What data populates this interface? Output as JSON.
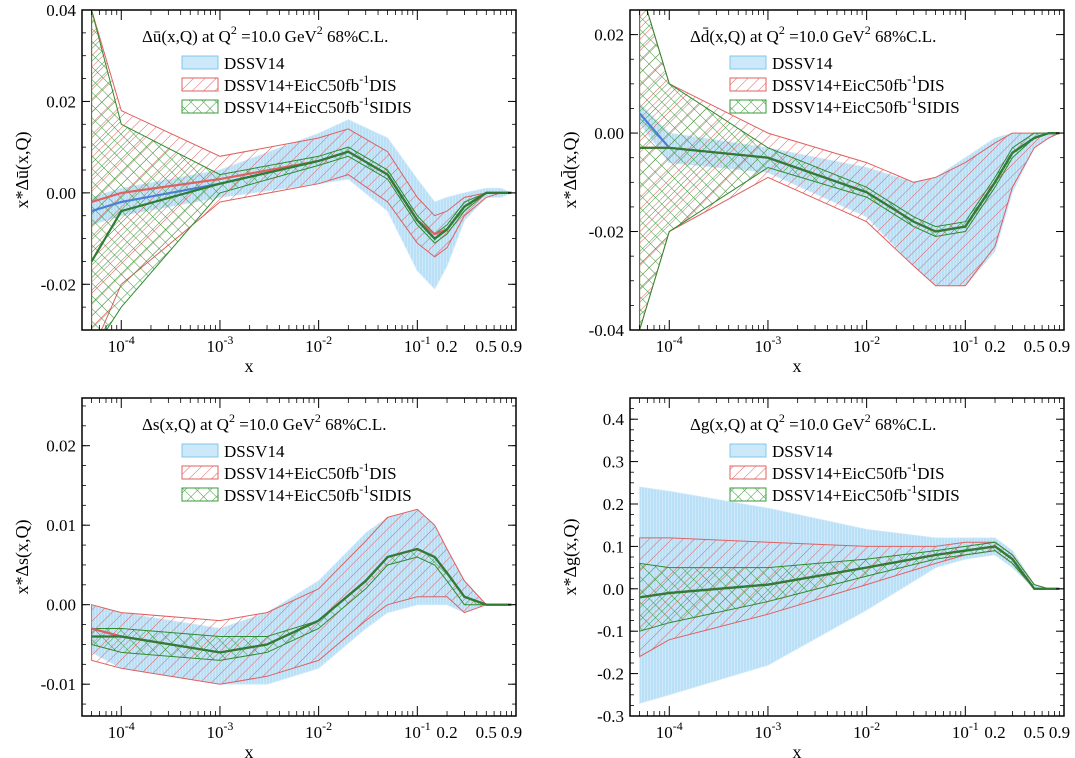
{
  "chart_data": [
    {
      "type": "area",
      "panel": "ubar",
      "title_main": "Δū(x,Q) at Q",
      "title_sup": "2",
      "title_rest": " =10.0 GeV",
      "title_sup2": "2",
      "title_end": " 68%C.L.",
      "xlabel": "x",
      "ylabel": "x*Δū(x,Q)",
      "xscale": "log",
      "xlim": [
        4e-05,
        1.0
      ],
      "ylim": [
        -0.03,
        0.04
      ],
      "yticks": [
        "-0.02",
        "0.00",
        "0.02",
        "0.04"
      ],
      "ytick_values": [
        -0.02,
        0.0,
        0.02,
        0.04
      ],
      "series": [
        {
          "name": "DSSV14",
          "x": [
            5e-05,
            0.0001,
            0.001,
            0.01,
            0.02,
            0.05,
            0.1,
            0.15,
            0.2,
            0.3,
            0.5,
            0.7,
            0.9
          ],
          "center": [
            -0.004,
            -0.002,
            0.002,
            0.007,
            0.009,
            0.004,
            -0.006,
            -0.01,
            -0.008,
            -0.003,
            0.0,
            0.0,
            0.0
          ],
          "upper": [
            -0.001,
            0.001,
            0.005,
            0.013,
            0.016,
            0.012,
            0.003,
            -0.002,
            -0.001,
            0.0,
            0.001,
            0.001,
            0.0
          ],
          "lower": [
            -0.007,
            -0.005,
            -0.001,
            0.002,
            0.003,
            -0.004,
            -0.017,
            -0.021,
            -0.016,
            -0.006,
            -0.001,
            -0.001,
            0.0
          ]
        },
        {
          "name": "DSSV14+EicC50fb-1DIS",
          "x": [
            5e-05,
            0.0001,
            0.001,
            0.01,
            0.02,
            0.05,
            0.1,
            0.15,
            0.2,
            0.3,
            0.5,
            0.7,
            0.9
          ],
          "center": [
            -0.002,
            0.0,
            0.003,
            0.007,
            0.009,
            0.004,
            -0.006,
            -0.009,
            -0.008,
            -0.003,
            0.0,
            0.0,
            0.0
          ],
          "upper": [
            0.04,
            0.018,
            0.008,
            0.012,
            0.014,
            0.009,
            -0.001,
            -0.005,
            -0.004,
            -0.001,
            0.0,
            0.0,
            0.0
          ],
          "lower": [
            -0.035,
            -0.02,
            -0.002,
            0.002,
            0.004,
            -0.002,
            -0.011,
            -0.014,
            -0.012,
            -0.005,
            -0.001,
            0.0,
            0.0
          ]
        },
        {
          "name": "DSSV14+EicC50fb-1SIDIS",
          "x": [
            5e-05,
            0.0001,
            0.001,
            0.01,
            0.02,
            0.05,
            0.1,
            0.15,
            0.2,
            0.3,
            0.5,
            0.7,
            0.9
          ],
          "center": [
            -0.015,
            -0.004,
            0.002,
            0.007,
            0.009,
            0.004,
            -0.006,
            -0.01,
            -0.008,
            -0.003,
            0.0,
            0.0,
            0.0
          ],
          "upper": [
            0.04,
            0.015,
            0.004,
            0.008,
            0.01,
            0.005,
            -0.005,
            -0.009,
            -0.007,
            -0.002,
            0.0,
            0.0,
            0.0
          ],
          "lower": [
            -0.035,
            -0.025,
            0.0,
            0.006,
            0.008,
            0.003,
            -0.007,
            -0.011,
            -0.009,
            -0.004,
            0.0,
            0.0,
            0.0
          ]
        }
      ],
      "legend_loc": "top-right"
    },
    {
      "type": "area",
      "panel": "dbar",
      "title_main": "Δd̄(x,Q) at Q",
      "title_sup": "2",
      "title_rest": " =10.0 GeV",
      "title_sup2": "2",
      "title_end": " 68%C.L.",
      "xlabel": "x",
      "ylabel": "x*Δd̄(x,Q)",
      "xscale": "log",
      "xlim": [
        4e-05,
        1.0
      ],
      "ylim": [
        -0.04,
        0.025
      ],
      "yticks": [
        "-0.04",
        "-0.02",
        "0.00",
        "0.02"
      ],
      "ytick_values": [
        -0.04,
        -0.02,
        0.0,
        0.02
      ],
      "series": [
        {
          "name": "DSSV14",
          "x": [
            5e-05,
            0.0001,
            0.001,
            0.01,
            0.03,
            0.05,
            0.1,
            0.2,
            0.3,
            0.5,
            0.7,
            0.9
          ],
          "center": [
            0.004,
            -0.003,
            -0.005,
            -0.012,
            -0.018,
            -0.02,
            -0.019,
            -0.01,
            -0.004,
            -0.001,
            0.0,
            0.0
          ],
          "upper": [
            0.006,
            0.0,
            -0.003,
            -0.007,
            -0.01,
            -0.009,
            -0.005,
            -0.001,
            0.0,
            0.0,
            0.0,
            0.0
          ],
          "lower": [
            0.002,
            -0.006,
            -0.008,
            -0.017,
            -0.027,
            -0.031,
            -0.031,
            -0.024,
            -0.012,
            -0.003,
            -0.001,
            0.0
          ]
        },
        {
          "name": "DSSV14+EicC50fb-1DIS",
          "x": [
            5e-05,
            0.0001,
            0.001,
            0.01,
            0.03,
            0.05,
            0.1,
            0.2,
            0.3,
            0.5,
            0.7,
            0.9
          ],
          "center": [
            -0.003,
            -0.003,
            -0.005,
            -0.012,
            -0.018,
            -0.02,
            -0.019,
            -0.01,
            -0.004,
            -0.001,
            0.0,
            0.0
          ],
          "upper": [
            0.03,
            0.01,
            0.0,
            -0.006,
            -0.01,
            -0.009,
            -0.006,
            -0.002,
            0.0,
            0.0,
            0.0,
            0.0
          ],
          "lower": [
            -0.04,
            -0.02,
            -0.009,
            -0.018,
            -0.027,
            -0.031,
            -0.031,
            -0.023,
            -0.011,
            -0.003,
            -0.001,
            0.0
          ]
        },
        {
          "name": "DSSV14+EicC50fb-1SIDIS",
          "x": [
            5e-05,
            0.0001,
            0.001,
            0.01,
            0.03,
            0.05,
            0.1,
            0.2,
            0.3,
            0.5,
            0.7,
            0.9
          ],
          "center": [
            -0.003,
            -0.003,
            -0.005,
            -0.012,
            -0.018,
            -0.02,
            -0.019,
            -0.01,
            -0.004,
            -0.001,
            0.0,
            0.0
          ],
          "upper": [
            0.03,
            0.01,
            -0.003,
            -0.011,
            -0.017,
            -0.019,
            -0.018,
            -0.009,
            -0.003,
            0.0,
            0.0,
            0.0
          ],
          "lower": [
            -0.04,
            -0.02,
            -0.007,
            -0.013,
            -0.019,
            -0.021,
            -0.02,
            -0.011,
            -0.005,
            -0.001,
            0.0,
            0.0
          ]
        }
      ],
      "legend_loc": "top-right"
    },
    {
      "type": "area",
      "panel": "s",
      "title_main": "Δs(x,Q) at Q",
      "title_sup": "2",
      "title_rest": " =10.0 GeV",
      "title_sup2": "2",
      "title_end": " 68%C.L.",
      "xlabel": "x",
      "ylabel": "x*Δs(x,Q)",
      "xscale": "log",
      "xlim": [
        4e-05,
        1.0
      ],
      "ylim": [
        -0.014,
        0.026
      ],
      "yticks": [
        "-0.01",
        "0.00",
        "0.01",
        "0.02"
      ],
      "ytick_values": [
        -0.01,
        0.0,
        0.01,
        0.02
      ],
      "series": [
        {
          "name": "DSSV14",
          "x": [
            5e-05,
            0.0001,
            0.001,
            0.003,
            0.01,
            0.03,
            0.05,
            0.1,
            0.15,
            0.2,
            0.3,
            0.5,
            0.7,
            0.9
          ],
          "center": [
            -0.003,
            -0.004,
            -0.006,
            -0.005,
            -0.002,
            0.003,
            0.006,
            0.007,
            0.006,
            0.004,
            0.001,
            0.0,
            0.0,
            0.0
          ],
          "upper": [
            0.0,
            -0.001,
            -0.003,
            -0.001,
            0.003,
            0.009,
            0.011,
            0.012,
            0.01,
            0.007,
            0.003,
            0.0,
            0.0,
            0.0
          ],
          "lower": [
            -0.006,
            -0.008,
            -0.01,
            -0.01,
            -0.008,
            -0.003,
            -0.001,
            0.0,
            0.0,
            0.0,
            -0.001,
            0.0,
            0.0,
            0.0
          ]
        },
        {
          "name": "DSSV14+EicC50fb-1DIS",
          "x": [
            5e-05,
            0.0001,
            0.001,
            0.003,
            0.01,
            0.03,
            0.05,
            0.1,
            0.15,
            0.2,
            0.3,
            0.5,
            0.7,
            0.9
          ],
          "center": [
            -0.003,
            -0.004,
            -0.006,
            -0.005,
            -0.002,
            0.003,
            0.006,
            0.007,
            0.006,
            0.004,
            0.001,
            0.0,
            0.0,
            0.0
          ],
          "upper": [
            0.0,
            -0.001,
            -0.002,
            -0.001,
            0.002,
            0.008,
            0.011,
            0.012,
            0.01,
            0.007,
            0.003,
            0.0,
            0.0,
            0.0
          ],
          "lower": [
            -0.007,
            -0.008,
            -0.01,
            -0.009,
            -0.007,
            -0.002,
            0.0,
            0.001,
            0.001,
            0.001,
            -0.001,
            0.0,
            0.0,
            0.0
          ]
        },
        {
          "name": "DSSV14+EicC50fb-1SIDIS",
          "x": [
            5e-05,
            0.0001,
            0.001,
            0.003,
            0.01,
            0.03,
            0.05,
            0.1,
            0.15,
            0.2,
            0.3,
            0.5,
            0.7,
            0.9
          ],
          "center": [
            -0.004,
            -0.004,
            -0.006,
            -0.005,
            -0.002,
            0.003,
            0.006,
            0.007,
            0.006,
            0.004,
            0.001,
            0.0,
            0.0,
            0.0
          ],
          "upper": [
            -0.003,
            -0.003,
            -0.004,
            -0.004,
            -0.002,
            0.003,
            0.006,
            0.007,
            0.006,
            0.004,
            0.001,
            0.0,
            0.0,
            0.0
          ],
          "lower": [
            -0.005,
            -0.006,
            -0.007,
            -0.006,
            -0.003,
            0.002,
            0.005,
            0.006,
            0.005,
            0.003,
            0.0,
            0.0,
            0.0,
            0.0
          ]
        }
      ],
      "legend_loc": "top-right"
    },
    {
      "type": "area",
      "panel": "g",
      "title_main": "Δg(x,Q) at Q",
      "title_sup": "2",
      "title_rest": " =10.0 GeV",
      "title_sup2": "2",
      "title_end": " 68%C.L.",
      "xlabel": "x",
      "ylabel": "x*Δg(x,Q)",
      "xscale": "log",
      "xlim": [
        4e-05,
        1.0
      ],
      "ylim": [
        -0.3,
        0.45
      ],
      "yticks": [
        "-0.3",
        "-0.2",
        "-0.1",
        "0.0",
        "0.1",
        "0.2",
        "0.3",
        "0.4"
      ],
      "ytick_values": [
        -0.3,
        -0.2,
        -0.1,
        0.0,
        0.1,
        0.2,
        0.3,
        0.4
      ],
      "series": [
        {
          "name": "DSSV14",
          "x": [
            5e-05,
            0.0001,
            0.001,
            0.01,
            0.05,
            0.1,
            0.2,
            0.3,
            0.5,
            0.7,
            0.9
          ],
          "center": [
            -0.02,
            -0.01,
            0.01,
            0.05,
            0.08,
            0.09,
            0.1,
            0.07,
            0.0,
            0.0,
            0.0
          ],
          "upper": [
            0.24,
            0.23,
            0.19,
            0.14,
            0.12,
            0.12,
            0.12,
            0.09,
            0.01,
            0.0,
            0.0
          ],
          "lower": [
            -0.27,
            -0.25,
            -0.18,
            -0.05,
            0.05,
            0.07,
            0.08,
            0.05,
            0.0,
            0.0,
            0.0
          ]
        },
        {
          "name": "DSSV14+EicC50fb-1DIS",
          "x": [
            5e-05,
            0.0001,
            0.001,
            0.01,
            0.05,
            0.1,
            0.2,
            0.3,
            0.5,
            0.7,
            0.9
          ],
          "center": [
            -0.02,
            -0.01,
            0.01,
            0.05,
            0.08,
            0.09,
            0.1,
            0.07,
            0.0,
            0.0,
            0.0
          ],
          "upper": [
            0.12,
            0.12,
            0.11,
            0.1,
            0.1,
            0.11,
            0.11,
            0.08,
            0.01,
            0.0,
            0.0
          ],
          "lower": [
            -0.16,
            -0.12,
            -0.06,
            0.01,
            0.06,
            0.08,
            0.09,
            0.06,
            0.0,
            0.0,
            0.0
          ]
        },
        {
          "name": "DSSV14+EicC50fb-1SIDIS",
          "x": [
            5e-05,
            0.0001,
            0.001,
            0.01,
            0.05,
            0.1,
            0.2,
            0.3,
            0.5,
            0.7,
            0.9
          ],
          "center": [
            -0.02,
            -0.01,
            0.01,
            0.05,
            0.08,
            0.09,
            0.1,
            0.07,
            0.0,
            0.0,
            0.0
          ],
          "upper": [
            0.06,
            0.05,
            0.05,
            0.07,
            0.09,
            0.1,
            0.11,
            0.08,
            0.01,
            0.0,
            0.0
          ],
          "lower": [
            -0.1,
            -0.08,
            -0.03,
            0.03,
            0.07,
            0.08,
            0.09,
            0.06,
            0.0,
            0.0,
            0.0
          ]
        }
      ],
      "legend_loc": "top-right"
    }
  ],
  "x_tick_labels": [
    {
      "v": 0.0001,
      "base": "10",
      "exp": "-4"
    },
    {
      "v": 0.001,
      "base": "10",
      "exp": "-3"
    },
    {
      "v": 0.01,
      "base": "10",
      "exp": "-2"
    },
    {
      "v": 0.1,
      "base": "10",
      "exp": "-1"
    },
    {
      "v": 0.2,
      "base": "0.2",
      "exp": ""
    },
    {
      "v": 0.5,
      "base": "0.5",
      "exp": ""
    },
    {
      "v": 0.9,
      "base": "0.9",
      "exp": ""
    }
  ],
  "legend": [
    {
      "text": "DSSV14",
      "sup": "",
      "tail": "",
      "color": "#7ec8f0",
      "fill": "#cde9f9"
    },
    {
      "text": "DSSV14+EicC50fb",
      "sup": "-1",
      "tail": "DIS",
      "color": "#e06060",
      "fill": "none"
    },
    {
      "text": "DSSV14+EicC50fb",
      "sup": "-1",
      "tail": "SIDIS",
      "color": "#3a9a3a",
      "fill": "none"
    }
  ],
  "colors": {
    "dssv_fill": "#cde9f9",
    "dssv_line": "#4a7fd8",
    "dis_line": "#e06060",
    "sidis_line": "#2e8b2e",
    "center_line": "#2e7d32"
  }
}
